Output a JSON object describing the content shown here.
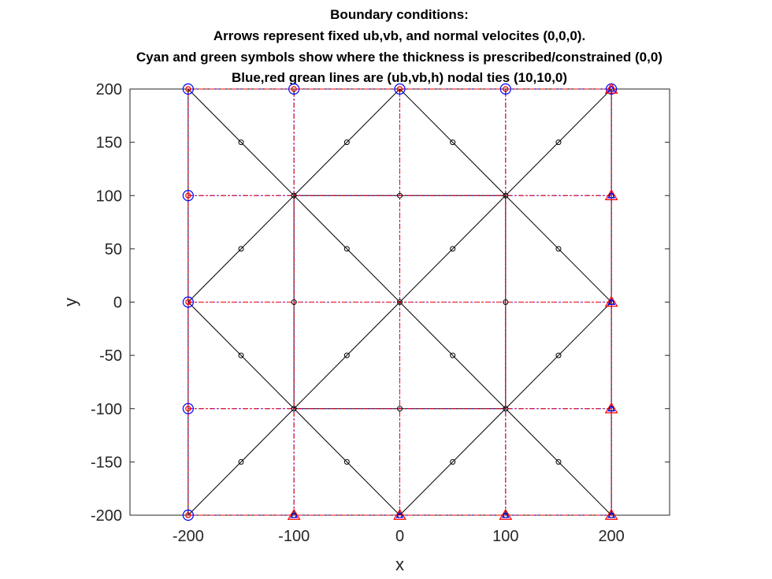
{
  "chart_data": {
    "type": "scatter",
    "title_lines": [
      "Boundary conditions:",
      "Arrows represent fixed ub,vb, and normal velocites (0,0,0).",
      "Cyan and green symbols show where the thickness is prescribed/constrained (0,0)",
      "Blue,red grean lines are (ub,vb,h) nodal ties (10,10,0)"
    ],
    "xlabel": "x",
    "ylabel": "y",
    "xlim": [
      -255,
      255
    ],
    "ylim": [
      -200,
      200
    ],
    "xticks": [
      -200,
      -100,
      0,
      100,
      200
    ],
    "yticks": [
      -200,
      -150,
      -100,
      -50,
      0,
      50,
      100,
      150,
      200
    ],
    "grid": false,
    "colors": {
      "mesh": "#000000",
      "tie_red": "#ff0000",
      "tie_blue": "#0000ff",
      "axis": "#262626"
    },
    "mesh_edges": [
      [
        [
          -200,
          -200
        ],
        [
          200,
          -200
        ]
      ],
      [
        [
          200,
          -200
        ],
        [
          200,
          200
        ]
      ],
      [
        [
          200,
          200
        ],
        [
          -200,
          200
        ]
      ],
      [
        [
          -200,
          200
        ],
        [
          -200,
          -200
        ]
      ],
      [
        [
          -200,
          200
        ],
        [
          200,
          -200
        ]
      ],
      [
        [
          0,
          200
        ],
        [
          -200,
          0
        ]
      ],
      [
        [
          200,
          0
        ],
        [
          0,
          -200
        ]
      ],
      [
        [
          -200,
          -200
        ],
        [
          200,
          200
        ]
      ],
      [
        [
          0,
          -200
        ],
        [
          -200,
          0
        ]
      ],
      [
        [
          200,
          0
        ],
        [
          0,
          200
        ]
      ],
      [
        [
          -100,
          100
        ],
        [
          100,
          100
        ]
      ],
      [
        [
          -100,
          -100
        ],
        [
          100,
          -100
        ]
      ],
      [
        [
          -100,
          -100
        ],
        [
          -100,
          100
        ]
      ],
      [
        [
          100,
          -100
        ],
        [
          100,
          100
        ]
      ]
    ],
    "nodes": [
      [
        -200,
        -200
      ],
      [
        -100,
        -200
      ],
      [
        0,
        -200
      ],
      [
        100,
        -200
      ],
      [
        200,
        -200
      ],
      [
        -200,
        -100
      ],
      [
        -100,
        -100
      ],
      [
        0,
        -100
      ],
      [
        100,
        -100
      ],
      [
        200,
        -100
      ],
      [
        -200,
        0
      ],
      [
        -100,
        0
      ],
      [
        0,
        0
      ],
      [
        100,
        0
      ],
      [
        200,
        0
      ],
      [
        -200,
        100
      ],
      [
        -100,
        100
      ],
      [
        0,
        100
      ],
      [
        100,
        100
      ],
      [
        200,
        100
      ],
      [
        -200,
        200
      ],
      [
        -100,
        200
      ],
      [
        0,
        200
      ],
      [
        100,
        200
      ],
      [
        200,
        200
      ],
      [
        -150,
        150
      ],
      [
        -50,
        150
      ],
      [
        50,
        150
      ],
      [
        150,
        150
      ],
      [
        -150,
        50
      ],
      [
        -50,
        50
      ],
      [
        50,
        50
      ],
      [
        150,
        50
      ],
      [
        -150,
        -50
      ],
      [
        -50,
        -50
      ],
      [
        50,
        -50
      ],
      [
        150,
        -50
      ],
      [
        -150,
        -150
      ],
      [
        -50,
        -150
      ],
      [
        50,
        -150
      ],
      [
        150,
        -150
      ]
    ],
    "tie_lines": [
      {
        "orientation": "horizontal",
        "values": [
          -200,
          -100,
          0,
          100,
          200
        ]
      },
      {
        "orientation": "vertical",
        "values": [
          -200,
          -100,
          0,
          100,
          200
        ]
      }
    ],
    "circle_markers": [
      [
        -200,
        -200
      ],
      [
        -200,
        -100
      ],
      [
        -200,
        0
      ],
      [
        -200,
        100
      ],
      [
        -200,
        200
      ],
      [
        -100,
        200
      ],
      [
        0,
        200
      ],
      [
        100,
        200
      ],
      [
        200,
        200
      ]
    ],
    "triangle_markers": [
      [
        -100,
        -200
      ],
      [
        0,
        -200
      ],
      [
        100,
        -200
      ],
      [
        200,
        -200
      ],
      [
        200,
        -100
      ],
      [
        200,
        0
      ],
      [
        200,
        100
      ],
      [
        200,
        200
      ]
    ]
  }
}
